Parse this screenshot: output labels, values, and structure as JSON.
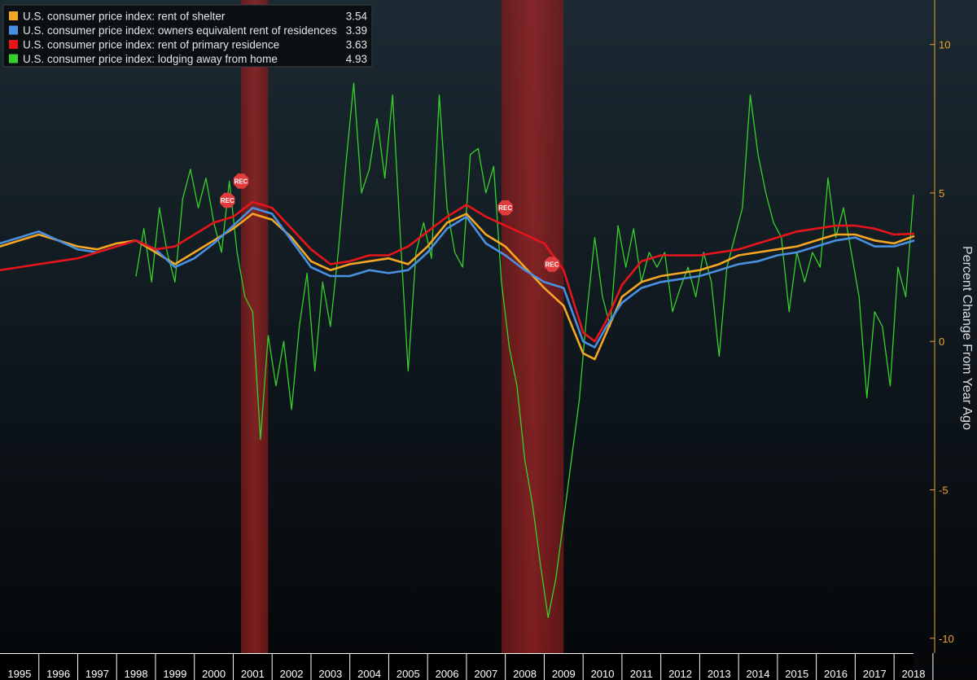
{
  "chart_data": {
    "type": "line",
    "title": "",
    "xlabel": "",
    "ylabel": "Percent Change From Year Ago",
    "xlim": [
      1995.0,
      2018.5
    ],
    "ylim": [
      -10.5,
      11.5
    ],
    "yticks": [
      10,
      5,
      0,
      -5,
      -10
    ],
    "yaxis_side": "right",
    "xticks": [
      "1995",
      "1996",
      "1997",
      "1998",
      "1999",
      "2000",
      "2001",
      "2002",
      "2003",
      "2004",
      "2005",
      "2006",
      "2007",
      "2008",
      "2009",
      "2010",
      "2011",
      "2012",
      "2013",
      "2014",
      "2015",
      "2016",
      "2017",
      "2018"
    ],
    "legend_position": "top-left",
    "recessions": [
      {
        "start": 2001.2,
        "end": 2001.9
      },
      {
        "start": 2007.9,
        "end": 2009.5
      }
    ],
    "rec_markers": [
      {
        "x": 2000.85,
        "y": 4.75,
        "label": "REC"
      },
      {
        "x": 2001.2,
        "y": 5.4,
        "label": "REC"
      },
      {
        "x": 2008.0,
        "y": 4.5,
        "label": "REC"
      },
      {
        "x": 2009.2,
        "y": 2.6,
        "label": "REC"
      }
    ],
    "series": [
      {
        "name": "U.S. consumer price index: rent of shelter",
        "last_value": "3.54",
        "color": "#f5a623",
        "points": [
          [
            1995.0,
            3.2
          ],
          [
            1995.5,
            3.4
          ],
          [
            1996.0,
            3.6
          ],
          [
            1996.5,
            3.4
          ],
          [
            1997.0,
            3.2
          ],
          [
            1997.5,
            3.1
          ],
          [
            1998.0,
            3.3
          ],
          [
            1998.5,
            3.4
          ],
          [
            1999.0,
            3.0
          ],
          [
            1999.5,
            2.6
          ],
          [
            2000.0,
            3.0
          ],
          [
            2000.5,
            3.4
          ],
          [
            2001.0,
            3.8
          ],
          [
            2001.5,
            4.3
          ],
          [
            2002.0,
            4.1
          ],
          [
            2002.5,
            3.5
          ],
          [
            2003.0,
            2.7
          ],
          [
            2003.5,
            2.4
          ],
          [
            2004.0,
            2.6
          ],
          [
            2004.5,
            2.7
          ],
          [
            2005.0,
            2.8
          ],
          [
            2005.5,
            2.6
          ],
          [
            2006.0,
            3.2
          ],
          [
            2006.5,
            4.0
          ],
          [
            2007.0,
            4.3
          ],
          [
            2007.5,
            3.6
          ],
          [
            2008.0,
            3.2
          ],
          [
            2008.5,
            2.5
          ],
          [
            2009.0,
            1.8
          ],
          [
            2009.5,
            1.2
          ],
          [
            2010.0,
            -0.4
          ],
          [
            2010.3,
            -0.6
          ],
          [
            2010.6,
            0.3
          ],
          [
            2011.0,
            1.5
          ],
          [
            2011.5,
            2.0
          ],
          [
            2012.0,
            2.2
          ],
          [
            2012.5,
            2.3
          ],
          [
            2013.0,
            2.4
          ],
          [
            2013.5,
            2.6
          ],
          [
            2014.0,
            2.9
          ],
          [
            2014.5,
            3.0
          ],
          [
            2015.0,
            3.1
          ],
          [
            2015.5,
            3.2
          ],
          [
            2016.0,
            3.4
          ],
          [
            2016.5,
            3.6
          ],
          [
            2017.0,
            3.6
          ],
          [
            2017.5,
            3.4
          ],
          [
            2018.0,
            3.3
          ],
          [
            2018.5,
            3.54
          ]
        ]
      },
      {
        "name": "U.S. consumer price index: owners equivalent rent of residences",
        "last_value": "3.39",
        "color": "#4a90e2",
        "points": [
          [
            1995.0,
            3.3
          ],
          [
            1995.5,
            3.5
          ],
          [
            1996.0,
            3.7
          ],
          [
            1996.5,
            3.4
          ],
          [
            1997.0,
            3.1
          ],
          [
            1997.5,
            3.0
          ],
          [
            1998.0,
            3.2
          ],
          [
            1998.5,
            3.4
          ],
          [
            1999.0,
            3.1
          ],
          [
            1999.5,
            2.5
          ],
          [
            2000.0,
            2.8
          ],
          [
            2000.5,
            3.3
          ],
          [
            2001.0,
            3.9
          ],
          [
            2001.5,
            4.5
          ],
          [
            2002.0,
            4.3
          ],
          [
            2002.5,
            3.4
          ],
          [
            2003.0,
            2.5
          ],
          [
            2003.5,
            2.2
          ],
          [
            2004.0,
            2.2
          ],
          [
            2004.5,
            2.4
          ],
          [
            2005.0,
            2.3
          ],
          [
            2005.5,
            2.4
          ],
          [
            2006.0,
            3.0
          ],
          [
            2006.5,
            3.8
          ],
          [
            2007.0,
            4.2
          ],
          [
            2007.5,
            3.3
          ],
          [
            2008.0,
            2.9
          ],
          [
            2008.5,
            2.4
          ],
          [
            2009.0,
            2.0
          ],
          [
            2009.5,
            1.8
          ],
          [
            2010.0,
            0.0
          ],
          [
            2010.3,
            -0.2
          ],
          [
            2010.6,
            0.5
          ],
          [
            2011.0,
            1.3
          ],
          [
            2011.5,
            1.8
          ],
          [
            2012.0,
            2.0
          ],
          [
            2012.5,
            2.1
          ],
          [
            2013.0,
            2.2
          ],
          [
            2013.5,
            2.4
          ],
          [
            2014.0,
            2.6
          ],
          [
            2014.5,
            2.7
          ],
          [
            2015.0,
            2.9
          ],
          [
            2015.5,
            3.0
          ],
          [
            2016.0,
            3.2
          ],
          [
            2016.5,
            3.4
          ],
          [
            2017.0,
            3.5
          ],
          [
            2017.5,
            3.2
          ],
          [
            2018.0,
            3.2
          ],
          [
            2018.5,
            3.39
          ]
        ]
      },
      {
        "name": "U.S. consumer price index: rent of primary residence",
        "last_value": "3.63",
        "color": "#e8141b",
        "points": [
          [
            1995.0,
            2.4
          ],
          [
            1995.5,
            2.5
          ],
          [
            1996.0,
            2.6
          ],
          [
            1996.5,
            2.7
          ],
          [
            1997.0,
            2.8
          ],
          [
            1997.5,
            3.0
          ],
          [
            1998.0,
            3.2
          ],
          [
            1998.5,
            3.4
          ],
          [
            1999.0,
            3.1
          ],
          [
            1999.5,
            3.2
          ],
          [
            2000.0,
            3.6
          ],
          [
            2000.5,
            4.0
          ],
          [
            2001.0,
            4.2
          ],
          [
            2001.5,
            4.7
          ],
          [
            2002.0,
            4.5
          ],
          [
            2002.5,
            3.8
          ],
          [
            2003.0,
            3.1
          ],
          [
            2003.5,
            2.6
          ],
          [
            2004.0,
            2.7
          ],
          [
            2004.5,
            2.9
          ],
          [
            2005.0,
            2.9
          ],
          [
            2005.5,
            3.2
          ],
          [
            2006.0,
            3.7
          ],
          [
            2006.5,
            4.2
          ],
          [
            2007.0,
            4.6
          ],
          [
            2007.5,
            4.2
          ],
          [
            2008.0,
            3.9
          ],
          [
            2008.5,
            3.6
          ],
          [
            2009.0,
            3.3
          ],
          [
            2009.5,
            2.4
          ],
          [
            2010.0,
            0.3
          ],
          [
            2010.3,
            0.0
          ],
          [
            2010.6,
            0.7
          ],
          [
            2011.0,
            1.9
          ],
          [
            2011.5,
            2.7
          ],
          [
            2012.0,
            2.9
          ],
          [
            2012.5,
            2.9
          ],
          [
            2013.0,
            2.9
          ],
          [
            2013.5,
            3.0
          ],
          [
            2014.0,
            3.1
          ],
          [
            2014.5,
            3.3
          ],
          [
            2015.0,
            3.5
          ],
          [
            2015.5,
            3.7
          ],
          [
            2016.0,
            3.8
          ],
          [
            2016.5,
            3.9
          ],
          [
            2017.0,
            3.9
          ],
          [
            2017.5,
            3.8
          ],
          [
            2018.0,
            3.6
          ],
          [
            2018.5,
            3.63
          ]
        ]
      },
      {
        "name": "U.S. consumer price index: lodging away from home",
        "last_value": "4.93",
        "color": "#36d12a",
        "points": [
          [
            1998.5,
            2.2
          ],
          [
            1998.7,
            3.8
          ],
          [
            1998.9,
            2.0
          ],
          [
            1999.1,
            4.5
          ],
          [
            1999.3,
            3.0
          ],
          [
            1999.5,
            2.0
          ],
          [
            1999.7,
            4.8
          ],
          [
            1999.9,
            5.8
          ],
          [
            2000.1,
            4.5
          ],
          [
            2000.3,
            5.5
          ],
          [
            2000.5,
            4.0
          ],
          [
            2000.7,
            3.0
          ],
          [
            2000.9,
            5.4
          ],
          [
            2001.1,
            3.0
          ],
          [
            2001.3,
            1.5
          ],
          [
            2001.5,
            1.0
          ],
          [
            2001.7,
            -3.3
          ],
          [
            2001.9,
            0.2
          ],
          [
            2002.1,
            -1.5
          ],
          [
            2002.3,
            0.0
          ],
          [
            2002.5,
            -2.3
          ],
          [
            2002.7,
            0.5
          ],
          [
            2002.9,
            2.3
          ],
          [
            2003.1,
            -1.0
          ],
          [
            2003.3,
            2.0
          ],
          [
            2003.5,
            0.5
          ],
          [
            2003.7,
            3.0
          ],
          [
            2003.9,
            6.0
          ],
          [
            2004.1,
            8.7
          ],
          [
            2004.3,
            5.0
          ],
          [
            2004.5,
            5.8
          ],
          [
            2004.7,
            7.5
          ],
          [
            2004.9,
            5.5
          ],
          [
            2005.1,
            8.3
          ],
          [
            2005.3,
            3.5
          ],
          [
            2005.5,
            -1.0
          ],
          [
            2005.7,
            3.0
          ],
          [
            2005.9,
            4.0
          ],
          [
            2006.1,
            2.8
          ],
          [
            2006.3,
            8.3
          ],
          [
            2006.5,
            4.5
          ],
          [
            2006.7,
            3.0
          ],
          [
            2006.9,
            2.5
          ],
          [
            2007.1,
            6.3
          ],
          [
            2007.3,
            6.5
          ],
          [
            2007.5,
            5.0
          ],
          [
            2007.7,
            5.9
          ],
          [
            2007.9,
            2.0
          ],
          [
            2008.1,
            -0.2
          ],
          [
            2008.3,
            -1.5
          ],
          [
            2008.5,
            -4.0
          ],
          [
            2008.7,
            -5.5
          ],
          [
            2008.9,
            -7.5
          ],
          [
            2009.1,
            -9.3
          ],
          [
            2009.3,
            -8.0
          ],
          [
            2009.5,
            -6.0
          ],
          [
            2009.7,
            -4.0
          ],
          [
            2009.9,
            -2.0
          ],
          [
            2010.1,
            1.0
          ],
          [
            2010.3,
            3.5
          ],
          [
            2010.5,
            1.5
          ],
          [
            2010.7,
            0.5
          ],
          [
            2010.9,
            3.9
          ],
          [
            2011.1,
            2.5
          ],
          [
            2011.3,
            3.8
          ],
          [
            2011.5,
            2.0
          ],
          [
            2011.7,
            3.0
          ],
          [
            2011.9,
            2.5
          ],
          [
            2012.1,
            3.0
          ],
          [
            2012.3,
            1.0
          ],
          [
            2012.5,
            1.8
          ],
          [
            2012.7,
            2.5
          ],
          [
            2012.9,
            1.5
          ],
          [
            2013.1,
            3.0
          ],
          [
            2013.3,
            2.0
          ],
          [
            2013.5,
            -0.5
          ],
          [
            2013.7,
            2.5
          ],
          [
            2013.9,
            3.5
          ],
          [
            2014.1,
            4.5
          ],
          [
            2014.3,
            8.3
          ],
          [
            2014.5,
            6.3
          ],
          [
            2014.7,
            5.0
          ],
          [
            2014.9,
            4.0
          ],
          [
            2015.1,
            3.5
          ],
          [
            2015.3,
            1.0
          ],
          [
            2015.5,
            3.0
          ],
          [
            2015.7,
            2.0
          ],
          [
            2015.9,
            3.0
          ],
          [
            2016.1,
            2.5
          ],
          [
            2016.3,
            5.5
          ],
          [
            2016.5,
            3.5
          ],
          [
            2016.7,
            4.5
          ],
          [
            2016.9,
            3.0
          ],
          [
            2017.1,
            1.5
          ],
          [
            2017.3,
            -1.9
          ],
          [
            2017.5,
            1.0
          ],
          [
            2017.7,
            0.5
          ],
          [
            2017.9,
            -1.5
          ],
          [
            2018.1,
            2.5
          ],
          [
            2018.3,
            1.5
          ],
          [
            2018.5,
            4.93
          ]
        ]
      }
    ]
  }
}
